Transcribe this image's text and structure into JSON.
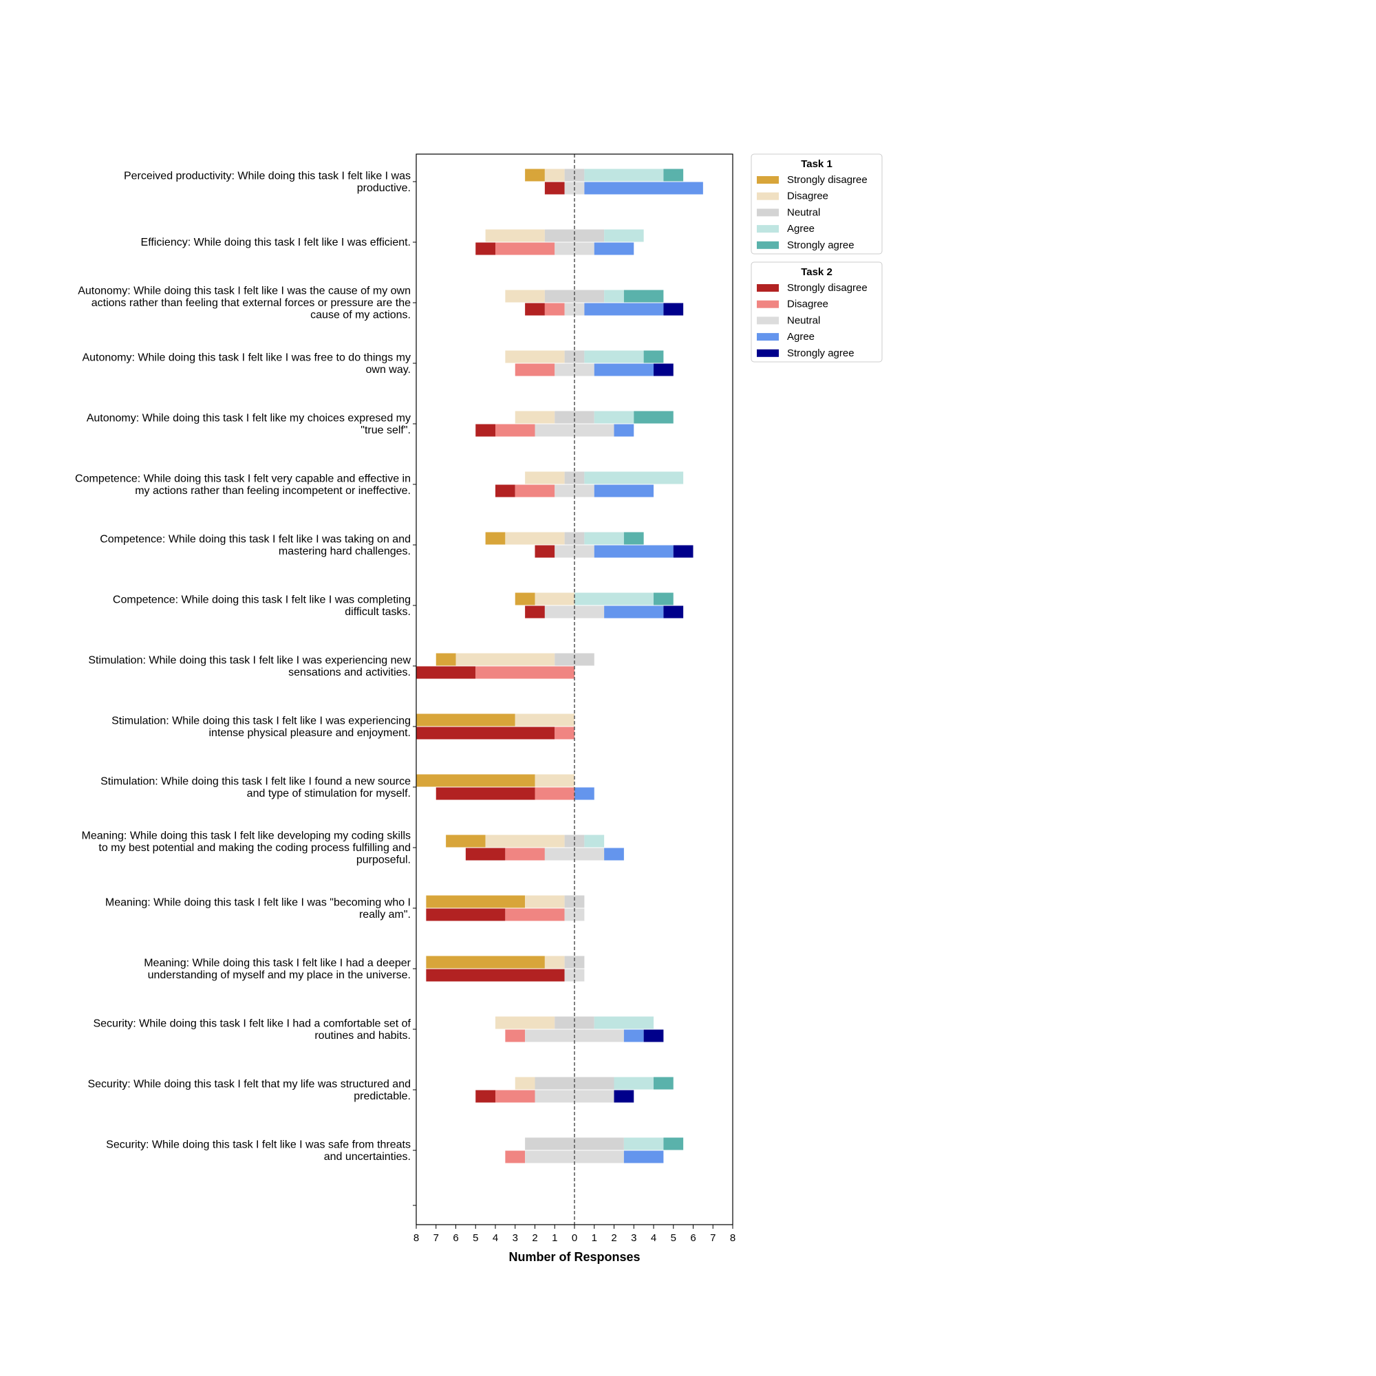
{
  "chart_data": {
    "type": "bar",
    "orientation": "horizontal",
    "stacking": "diverging",
    "xlabel": "Number of Responses",
    "xlim": [
      -8,
      8
    ],
    "x_ticks": [
      -8,
      -7,
      -6,
      -5,
      -4,
      -3,
      -2,
      -1,
      0,
      1,
      2,
      3,
      4,
      5,
      6,
      7,
      8
    ],
    "x_tick_labels": [
      "8",
      "7",
      "6",
      "5",
      "4",
      "3",
      "2",
      "1",
      "0",
      "1",
      "2",
      "3",
      "4",
      "5",
      "6",
      "7",
      "8"
    ],
    "center_line": "dashed",
    "legend_placement": "outside-right",
    "categories": [
      "Strongly disagree",
      "Disagree",
      "Neutral",
      "Agree",
      "Strongly agree"
    ],
    "groups": [
      {
        "title": "Task 1",
        "colors": [
          "#d8a53a",
          "#f0e0c2",
          "#d3d3d3",
          "#bfe5e1",
          "#5ab2ab"
        ]
      },
      {
        "title": "Task 2",
        "colors": [
          "#b22222",
          "#f08582",
          "#dcdcdc",
          "#6495ed",
          "#00008b"
        ]
      }
    ],
    "questions": [
      {
        "lines": [
          "Perceived productivity: While doing this task I felt like I was",
          "productive."
        ],
        "task1": [
          1,
          1,
          1,
          4,
          1
        ],
        "task2": [
          1,
          0,
          1,
          6,
          0
        ]
      },
      {
        "lines": [
          "Efficiency: While doing this task I felt like I was efficient."
        ],
        "task1": [
          0,
          3,
          3,
          2,
          0
        ],
        "task2": [
          1,
          3,
          2,
          2,
          0
        ]
      },
      {
        "lines": [
          "Autonomy: While doing this task I felt like I was the cause of my own",
          "actions rather than feeling that external forces or pressure are the",
          "cause of my actions."
        ],
        "task1": [
          0,
          2,
          3,
          1,
          2
        ],
        "task2": [
          1,
          1,
          1,
          4,
          1
        ]
      },
      {
        "lines": [
          "Autonomy: While doing this task I felt like I was free to do things my",
          "own way."
        ],
        "task1": [
          0,
          3,
          1,
          3,
          1
        ],
        "task2": [
          0,
          2,
          2,
          3,
          1
        ]
      },
      {
        "lines": [
          "Autonomy: While doing this task I felt like my choices expresed my",
          "\"true self\"."
        ],
        "task1": [
          0,
          2,
          2,
          2,
          2
        ],
        "task2": [
          1,
          2,
          4,
          1,
          0
        ]
      },
      {
        "lines": [
          "Competence: While doing this task I felt very capable and effective in",
          "my actions rather than feeling incompetent or ineffective."
        ],
        "task1": [
          0,
          2,
          1,
          5,
          0
        ],
        "task2": [
          1,
          2,
          2,
          3,
          0
        ]
      },
      {
        "lines": [
          "Competence: While doing this task I felt like I was taking on and",
          "mastering hard challenges."
        ],
        "task1": [
          1,
          3,
          1,
          2,
          1
        ],
        "task2": [
          1,
          0,
          2,
          4,
          1
        ]
      },
      {
        "lines": [
          "Competence: While doing this task I felt like I was completing",
          "difficult tasks."
        ],
        "task1": [
          1,
          2,
          0,
          4,
          1
        ],
        "task2": [
          1,
          0,
          3,
          3,
          1
        ]
      },
      {
        "lines": [
          "Stimulation: While doing this task I felt like I was experiencing new",
          "sensations and activities."
        ],
        "task1": [
          1,
          5,
          2,
          0,
          0
        ],
        "task2": [
          3,
          5,
          0,
          0,
          0
        ]
      },
      {
        "lines": [
          "Stimulation: While doing this task I felt like I was experiencing",
          "intense physical pleasure and enjoyment."
        ],
        "task1": [
          5,
          3,
          0,
          0,
          0
        ],
        "task2": [
          7,
          1,
          0,
          0,
          0
        ]
      },
      {
        "lines": [
          "Stimulation: While doing this task I felt like I found a new source",
          "and type of stimulation for myself."
        ],
        "task1": [
          6,
          2,
          0,
          0,
          0
        ],
        "task2": [
          5,
          2,
          0,
          1,
          0
        ]
      },
      {
        "lines": [
          "Meaning: While doing this task I felt like developing my coding skills",
          "to my best potential and making the coding process fulfilling and",
          "purposeful."
        ],
        "task1": [
          2,
          4,
          1,
          1,
          0
        ],
        "task2": [
          2,
          2,
          3,
          1,
          0
        ]
      },
      {
        "lines": [
          "Meaning: While doing this task I felt like I was \"becoming who I",
          "really am\"."
        ],
        "task1": [
          5,
          2,
          1,
          0,
          0
        ],
        "task2": [
          4,
          3,
          1,
          0,
          0
        ]
      },
      {
        "lines": [
          "Meaning: While doing this task I felt like I had a deeper",
          "understanding of myself and my place in the universe."
        ],
        "task1": [
          6,
          1,
          1,
          0,
          0
        ],
        "task2": [
          7,
          0,
          1,
          0,
          0
        ]
      },
      {
        "lines": [
          "Security: While doing this task I felt like I had a comfortable set of",
          "routines and habits."
        ],
        "task1": [
          0,
          3,
          2,
          3,
          0
        ],
        "task2": [
          0,
          1,
          5,
          1,
          1
        ]
      },
      {
        "lines": [
          "Security: While doing this task I felt that my life was structured and",
          "predictable."
        ],
        "task1": [
          0,
          1,
          4,
          2,
          1
        ],
        "task2": [
          1,
          2,
          4,
          0,
          1
        ]
      },
      {
        "lines": [
          "Security: While doing this task I felt like I was safe from threats",
          "and uncertainties."
        ],
        "task1": [
          0,
          0,
          5,
          2,
          1
        ],
        "task2": [
          0,
          1,
          5,
          2,
          0
        ]
      }
    ]
  }
}
